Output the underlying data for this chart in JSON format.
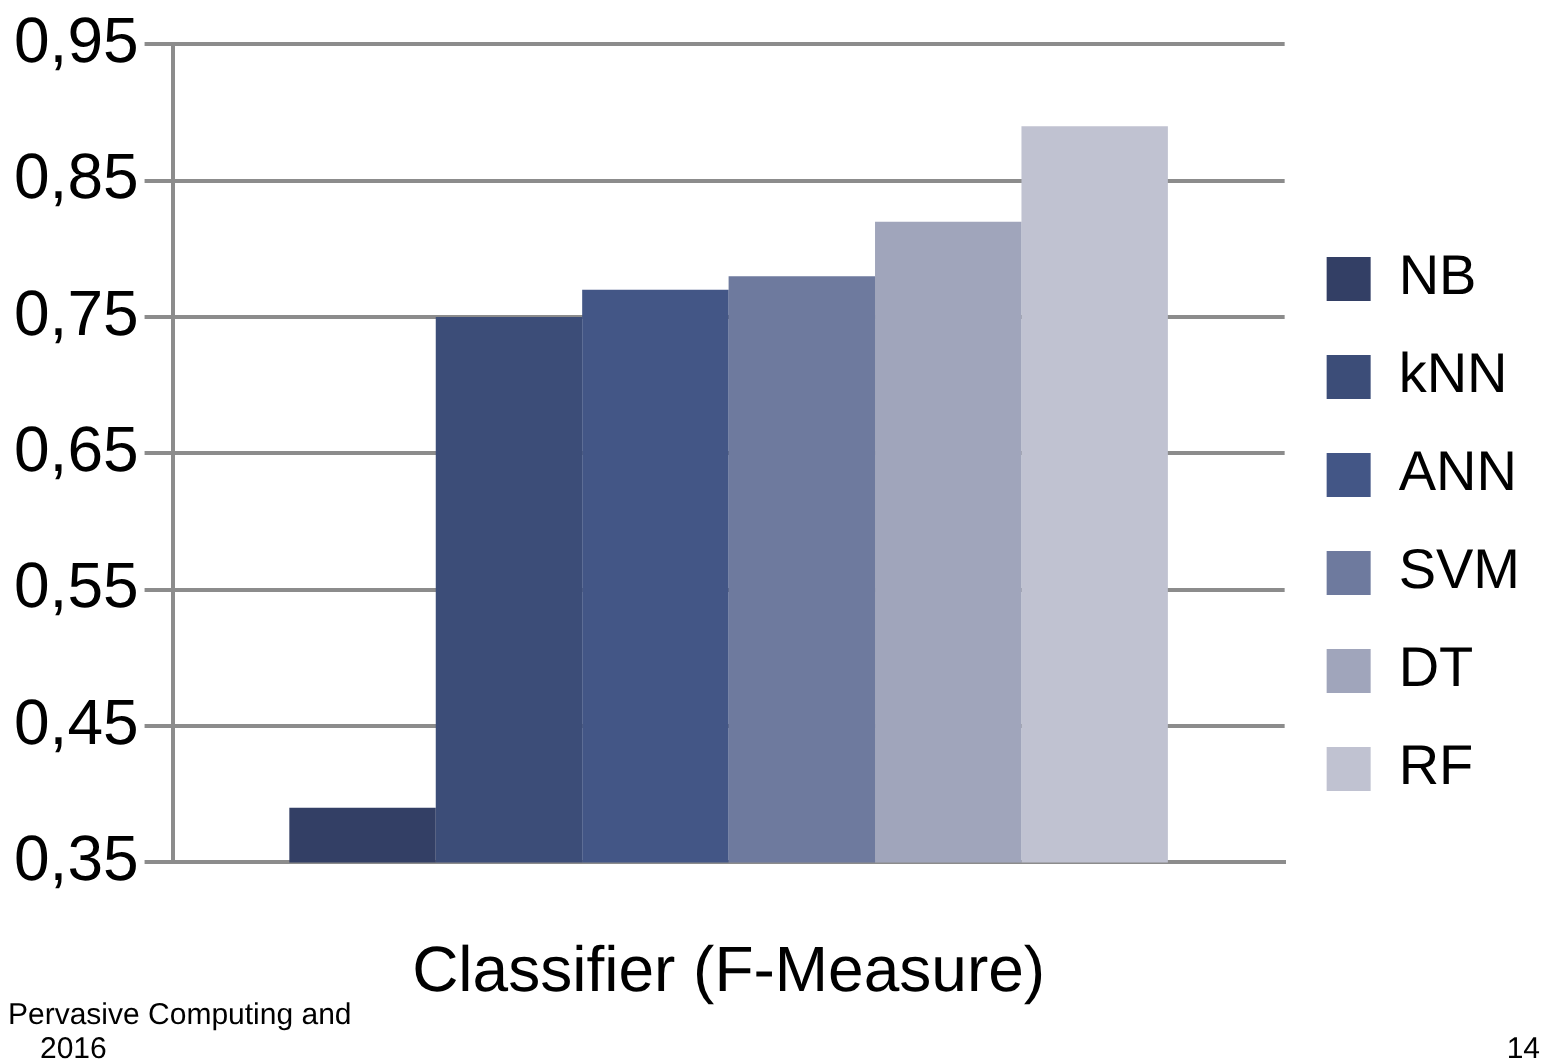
{
  "chart_data": {
    "type": "bar",
    "xlabel": "Classifier (F-Measure)",
    "categories": [
      null
    ],
    "series": [
      {
        "name": "NB",
        "color": "#333f65",
        "values": [
          0.39
        ]
      },
      {
        "name": "kNN",
        "color": "#3c4d78",
        "values": [
          0.75
        ]
      },
      {
        "name": "ANN",
        "color": "#435686",
        "values": [
          0.77
        ]
      },
      {
        "name": "SVM",
        "color": "#6e7a9e",
        "values": [
          0.78
        ]
      },
      {
        "name": "DT",
        "color": "#a0a5bb",
        "values": [
          0.82
        ]
      },
      {
        "name": "RF",
        "color": "#c0c2d1",
        "values": [
          0.89
        ]
      }
    ],
    "ylim": [
      0.35,
      0.95
    ],
    "yticks": [
      {
        "value": 0.35,
        "label": "0,35"
      },
      {
        "value": 0.45,
        "label": "0,45"
      },
      {
        "value": 0.55,
        "label": "0,55"
      },
      {
        "value": 0.65,
        "label": "0,65"
      },
      {
        "value": 0.75,
        "label": "0,75"
      },
      {
        "value": 0.85,
        "label": "0,85"
      },
      {
        "value": 0.95,
        "label": "0,95"
      }
    ],
    "grid": "y",
    "legend": "right",
    "annotations": [
      "Pervasive Computing and",
      "2016",
      "14"
    ]
  }
}
